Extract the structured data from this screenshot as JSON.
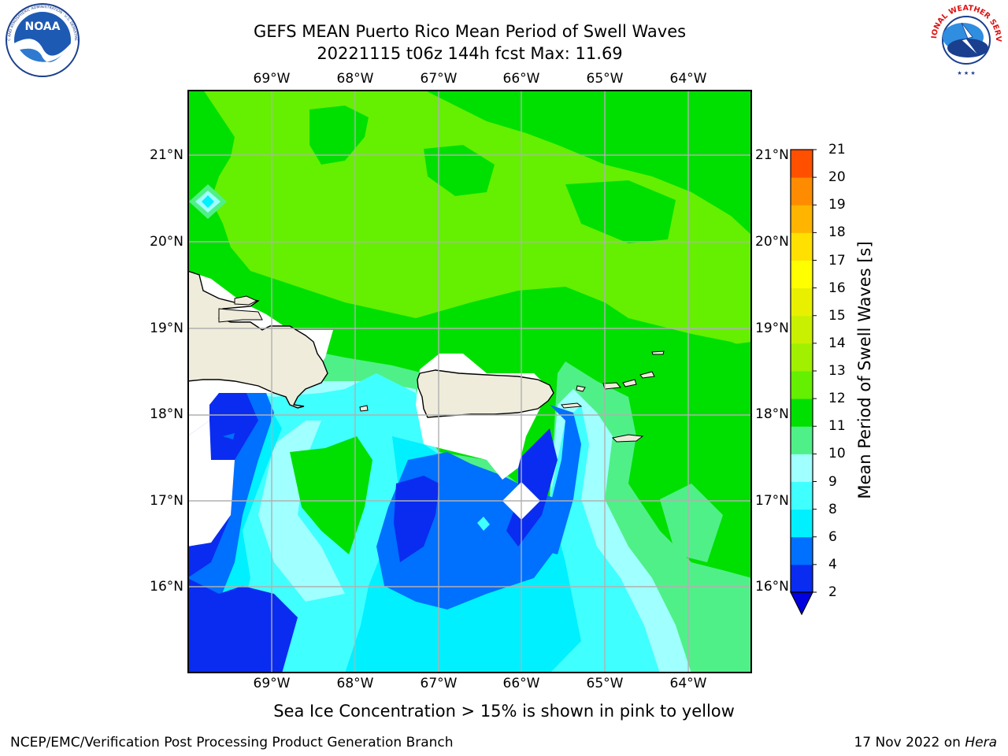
{
  "header": {
    "title_line1": "GEFS MEAN Puerto Rico Mean Period of Swell Waves",
    "title_line2": "20221115 t06z 144h fcst   Max: 11.69"
  },
  "map": {
    "lon_ticks": [
      "69°W",
      "68°W",
      "67°W",
      "66°W",
      "65°W",
      "64°W"
    ],
    "lat_ticks": [
      "21°N",
      "20°N",
      "19°N",
      "18°N",
      "17°N",
      "16°N"
    ],
    "land_color": "#efecdc",
    "no_data_color": "#ffffff"
  },
  "colorbar": {
    "label": "Mean Period of Swell Waves [s]",
    "ticks": [
      "2",
      "4",
      "6",
      "8",
      "9",
      "10",
      "11",
      "12",
      "13",
      "14",
      "15",
      "16",
      "17",
      "18",
      "19",
      "20",
      "21"
    ],
    "colors": [
      "#0a2cf0",
      "#0070ff",
      "#00f0ff",
      "#40ffff",
      "#a0ffff",
      "#50f088",
      "#00e000",
      "#64f000",
      "#a0f000",
      "#c8f000",
      "#e8f000",
      "#ffff00",
      "#ffe000",
      "#ffb400",
      "#ff8c00",
      "#ff5000",
      "#ff2000",
      "#ff0000"
    ],
    "under_color": "#0000e0"
  },
  "caption": "Sea Ice Concentration > 15% is shown in pink to yellow",
  "footer": {
    "left": "NCEP/EMC/Verification Post Processing Product Generation Branch",
    "right_date": "17 Nov 2022 on",
    "right_machine": "Hera"
  },
  "logos": {
    "left": "NOAA",
    "left_ring": "NATIONAL OCEANIC AND ATMOSPHERIC ADMINISTRATION · U.S. DEPARTMENT OF COMMERCE",
    "right_ring": "NATIONAL WEATHER SERVICE"
  }
}
